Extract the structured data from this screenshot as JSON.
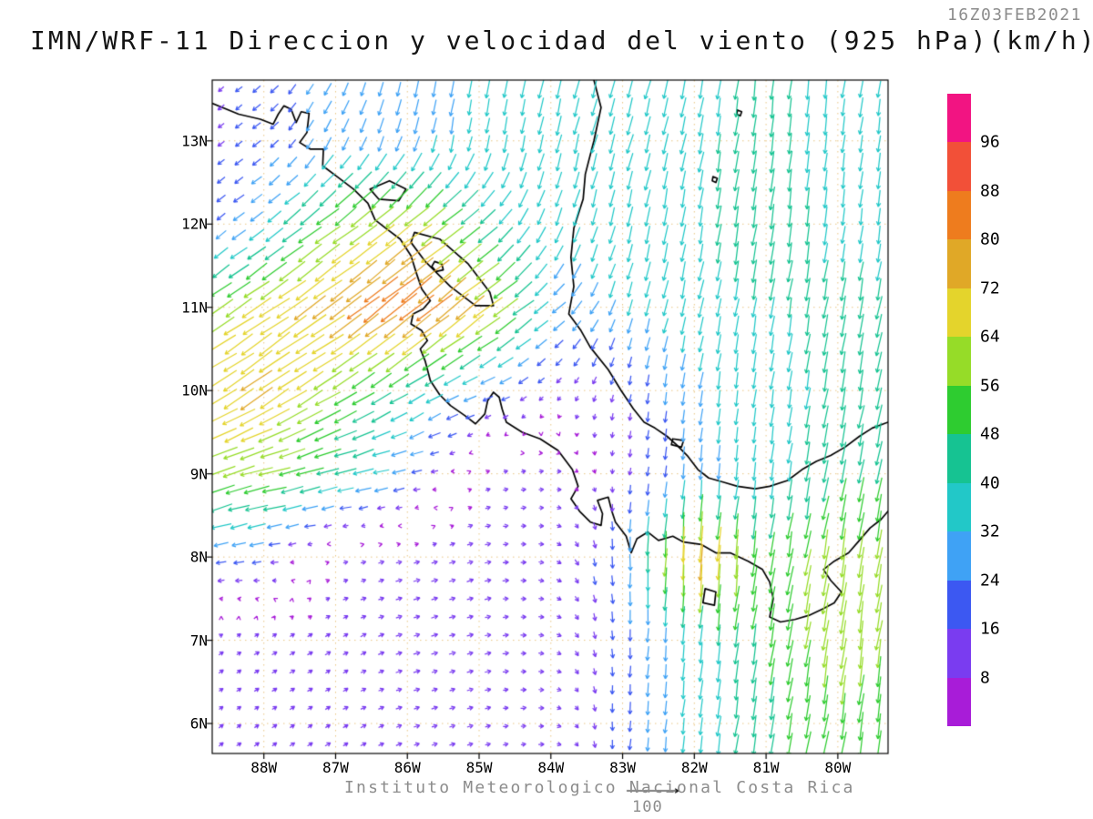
{
  "header": {
    "timestamp": "16Z03FEB2021",
    "title": "IMN/WRF-11 Direccion y velocidad del viento (925 hPa)(km/h)"
  },
  "footer": {
    "credit": "Instituto Meteorologico Nacional Costa Rica",
    "reference_label": "100"
  },
  "axes": {
    "lat_ticks": [
      "13N",
      "12N",
      "11N",
      "10N",
      "9N",
      "8N",
      "7N",
      "6N"
    ],
    "lat_values": [
      13,
      12,
      11,
      10,
      9,
      8,
      7,
      6
    ],
    "lon_ticks": [
      "88W",
      "87W",
      "86W",
      "85W",
      "84W",
      "83W",
      "82W",
      "81W",
      "80W"
    ],
    "lon_values": [
      -88,
      -87,
      -86,
      -85,
      -84,
      -83,
      -82,
      -81,
      -80
    ]
  },
  "colorbar": {
    "labels": [
      "96",
      "88",
      "80",
      "72",
      "64",
      "56",
      "48",
      "40",
      "32",
      "24",
      "16",
      "8"
    ],
    "levels": [
      8,
      16,
      24,
      32,
      40,
      48,
      56,
      64,
      72,
      80,
      88,
      96
    ],
    "colors": [
      "#a81cd8",
      "#7a3cf0",
      "#3c58f2",
      "#3fa2f5",
      "#22c8c8",
      "#16c392",
      "#2ecc30",
      "#96dc28",
      "#e4d42c",
      "#e0a827",
      "#ee7c1e",
      "#f25038",
      "#f21482"
    ]
  },
  "map": {
    "lon_min": -88.72,
    "lon_max": -79.3,
    "lat_min": 5.64,
    "lat_max": 13.73,
    "grid_color": "#e8c583",
    "coast_color": "#000000",
    "coastlines": [
      {
        "name": "pacific-coast",
        "points": [
          [
            -88.72,
            13.45
          ],
          [
            -88.35,
            13.32
          ],
          [
            -88.05,
            13.26
          ],
          [
            -87.87,
            13.2
          ],
          [
            -87.8,
            13.32
          ],
          [
            -87.72,
            13.42
          ],
          [
            -87.62,
            13.38
          ],
          [
            -87.55,
            13.22
          ],
          [
            -87.48,
            13.35
          ],
          [
            -87.37,
            13.33
          ],
          [
            -87.4,
            13.1
          ],
          [
            -87.5,
            12.98
          ],
          [
            -87.35,
            12.9
          ],
          [
            -87.17,
            12.9
          ],
          [
            -87.18,
            12.7
          ],
          [
            -86.95,
            12.55
          ],
          [
            -86.75,
            12.42
          ],
          [
            -86.55,
            12.25
          ],
          [
            -86.45,
            12.05
          ],
          [
            -86.3,
            11.95
          ],
          [
            -86.1,
            11.82
          ],
          [
            -85.95,
            11.62
          ],
          [
            -85.87,
            11.4
          ],
          [
            -85.8,
            11.22
          ],
          [
            -85.68,
            11.08
          ],
          [
            -85.78,
            10.98
          ],
          [
            -85.92,
            10.92
          ],
          [
            -85.95,
            10.8
          ],
          [
            -85.8,
            10.72
          ],
          [
            -85.72,
            10.6
          ],
          [
            -85.82,
            10.5
          ],
          [
            -85.75,
            10.35
          ],
          [
            -85.68,
            10.12
          ],
          [
            -85.55,
            9.95
          ],
          [
            -85.4,
            9.82
          ],
          [
            -85.2,
            9.7
          ],
          [
            -85.05,
            9.6
          ],
          [
            -84.92,
            9.72
          ],
          [
            -84.88,
            9.88
          ],
          [
            -84.8,
            9.98
          ],
          [
            -84.72,
            9.92
          ],
          [
            -84.68,
            9.78
          ],
          [
            -84.62,
            9.62
          ],
          [
            -84.4,
            9.5
          ],
          [
            -84.15,
            9.42
          ],
          [
            -83.9,
            9.28
          ],
          [
            -83.7,
            9.05
          ],
          [
            -83.62,
            8.85
          ],
          [
            -83.72,
            8.7
          ],
          [
            -83.6,
            8.55
          ],
          [
            -83.45,
            8.42
          ],
          [
            -83.3,
            8.38
          ],
          [
            -83.28,
            8.52
          ],
          [
            -83.35,
            8.68
          ],
          [
            -83.2,
            8.72
          ],
          [
            -83.15,
            8.55
          ],
          [
            -83.1,
            8.42
          ],
          [
            -82.95,
            8.25
          ],
          [
            -82.88,
            8.05
          ],
          [
            -82.8,
            8.22
          ],
          [
            -82.65,
            8.3
          ],
          [
            -82.5,
            8.2
          ],
          [
            -82.3,
            8.25
          ],
          [
            -82.15,
            8.18
          ],
          [
            -81.9,
            8.15
          ],
          [
            -81.7,
            8.05
          ],
          [
            -81.5,
            8.05
          ],
          [
            -81.25,
            7.95
          ],
          [
            -81.05,
            7.85
          ],
          [
            -80.95,
            7.7
          ],
          [
            -80.9,
            7.5
          ],
          [
            -80.95,
            7.28
          ],
          [
            -80.8,
            7.22
          ],
          [
            -80.6,
            7.25
          ],
          [
            -80.4,
            7.3
          ],
          [
            -80.2,
            7.38
          ],
          [
            -80.05,
            7.45
          ],
          [
            -79.95,
            7.58
          ],
          [
            -80.1,
            7.72
          ],
          [
            -80.2,
            7.85
          ],
          [
            -80.05,
            7.95
          ],
          [
            -79.85,
            8.05
          ],
          [
            -79.7,
            8.2
          ],
          [
            -79.55,
            8.35
          ],
          [
            -79.4,
            8.45
          ],
          [
            -79.3,
            8.55
          ]
        ]
      },
      {
        "name": "caribbean-coast",
        "points": [
          [
            -83.4,
            13.73
          ],
          [
            -83.3,
            13.4
          ],
          [
            -83.4,
            13.0
          ],
          [
            -83.52,
            12.6
          ],
          [
            -83.55,
            12.3
          ],
          [
            -83.68,
            11.95
          ],
          [
            -83.72,
            11.6
          ],
          [
            -83.68,
            11.25
          ],
          [
            -83.75,
            10.92
          ],
          [
            -83.58,
            10.72
          ],
          [
            -83.45,
            10.52
          ],
          [
            -83.2,
            10.25
          ],
          [
            -83.02,
            10.0
          ],
          [
            -82.85,
            9.78
          ],
          [
            -82.7,
            9.62
          ],
          [
            -82.55,
            9.55
          ],
          [
            -82.38,
            9.45
          ],
          [
            -82.25,
            9.35
          ],
          [
            -82.1,
            9.22
          ],
          [
            -81.95,
            9.05
          ],
          [
            -81.8,
            8.95
          ],
          [
            -81.6,
            8.9
          ],
          [
            -81.4,
            8.85
          ],
          [
            -81.15,
            8.82
          ],
          [
            -80.95,
            8.85
          ],
          [
            -80.7,
            8.92
          ],
          [
            -80.5,
            9.05
          ],
          [
            -80.3,
            9.15
          ],
          [
            -80.1,
            9.22
          ],
          [
            -79.9,
            9.32
          ],
          [
            -79.7,
            9.45
          ],
          [
            -79.52,
            9.55
          ],
          [
            -79.3,
            9.62
          ]
        ]
      },
      {
        "name": "lake-nicaragua",
        "points": [
          [
            -85.9,
            11.9
          ],
          [
            -85.55,
            11.82
          ],
          [
            -85.15,
            11.52
          ],
          [
            -84.85,
            11.18
          ],
          [
            -84.8,
            11.02
          ],
          [
            -85.05,
            11.02
          ],
          [
            -85.4,
            11.25
          ],
          [
            -85.75,
            11.55
          ],
          [
            -85.95,
            11.78
          ],
          [
            -85.9,
            11.9
          ]
        ]
      },
      {
        "name": "ometepe-island",
        "points": [
          [
            -85.62,
            11.55
          ],
          [
            -85.52,
            11.52
          ],
          [
            -85.5,
            11.45
          ],
          [
            -85.6,
            11.43
          ],
          [
            -85.66,
            11.49
          ],
          [
            -85.62,
            11.55
          ]
        ]
      },
      {
        "name": "lake-managua",
        "points": [
          [
            -86.52,
            12.42
          ],
          [
            -86.25,
            12.52
          ],
          [
            -86.02,
            12.42
          ],
          [
            -86.12,
            12.28
          ],
          [
            -86.4,
            12.3
          ],
          [
            -86.52,
            12.42
          ]
        ]
      },
      {
        "name": "coiba-island",
        "points": [
          [
            -81.85,
            7.62
          ],
          [
            -81.7,
            7.58
          ],
          [
            -81.72,
            7.42
          ],
          [
            -81.88,
            7.45
          ],
          [
            -81.85,
            7.62
          ]
        ]
      },
      {
        "name": "bocas-islands",
        "points": [
          [
            -82.3,
            9.42
          ],
          [
            -82.15,
            9.4
          ],
          [
            -82.18,
            9.32
          ],
          [
            -82.32,
            9.35
          ],
          [
            -82.3,
            9.42
          ]
        ]
      },
      {
        "name": "san-andres-island",
        "points": [
          [
            -81.74,
            12.57
          ],
          [
            -81.68,
            12.55
          ],
          [
            -81.7,
            12.5
          ],
          [
            -81.75,
            12.52
          ],
          [
            -81.74,
            12.57
          ]
        ]
      },
      {
        "name": "providencia-island",
        "points": [
          [
            -81.4,
            13.37
          ],
          [
            -81.34,
            13.35
          ],
          [
            -81.36,
            13.3
          ],
          [
            -81.41,
            13.32
          ],
          [
            -81.4,
            13.37
          ]
        ]
      }
    ]
  },
  "chart_data": {
    "type": "vector_field",
    "title": "IMN/WRF-11 Direccion y velocidad del viento (925 hPa)(km/h)",
    "valid_time": "16Z03FEB2021",
    "units": "km/h",
    "pressure_level": "925 hPa",
    "reference_vector": 100,
    "speed_levels": [
      8,
      16,
      24,
      32,
      40,
      48,
      56,
      64,
      72,
      80,
      88,
      96
    ],
    "grid": {
      "lats": [
        5,
        6,
        7,
        8,
        9,
        10,
        11,
        12,
        13,
        14
      ],
      "lons": [
        -89,
        -88,
        -87,
        -86,
        -85,
        -84,
        -83,
        -82,
        -81,
        -80,
        -79
      ],
      "u": [
        [
          8,
          9,
          10,
          11,
          11,
          10,
          -2,
          -4,
          -8,
          -8,
          -8
        ],
        [
          8,
          9,
          10,
          11,
          11,
          10,
          -2,
          -4,
          -8,
          -8,
          -8
        ],
        [
          8,
          10,
          10,
          12,
          12,
          10,
          0,
          -3,
          -8,
          -10,
          -8
        ],
        [
          -25,
          -20,
          8,
          12,
          12,
          10,
          0,
          -5,
          -8,
          -10,
          -10
        ],
        [
          -60,
          -58,
          -45,
          -25,
          8,
          10,
          -2,
          -3,
          -5,
          -10,
          -10
        ],
        [
          -58,
          -62,
          -48,
          -35,
          -25,
          -8,
          -3,
          -5,
          -5,
          -8,
          -8
        ],
        [
          -45,
          -55,
          -62,
          -70,
          -58,
          -25,
          -10,
          -8,
          -6,
          -8,
          -8
        ],
        [
          -12,
          -25,
          -45,
          -55,
          -35,
          -12,
          -8,
          -6,
          -8,
          -5,
          -5
        ],
        [
          -10,
          -15,
          -12,
          -8,
          -5,
          -8,
          -10,
          -8,
          -5,
          -5,
          -5
        ],
        [
          -10,
          -15,
          -12,
          -8,
          -5,
          -8,
          -10,
          -8,
          -5,
          -5,
          -5
        ]
      ],
      "v": [
        [
          6,
          6,
          6,
          4,
          3,
          0,
          -20,
          -35,
          -45,
          -52,
          -48
        ],
        [
          6,
          6,
          6,
          4,
          3,
          0,
          -20,
          -35,
          -45,
          -52,
          -48
        ],
        [
          5,
          6,
          6,
          4,
          3,
          -2,
          -22,
          -35,
          -48,
          -62,
          -55
        ],
        [
          -5,
          -3,
          2,
          3,
          4,
          -3,
          -25,
          -80,
          -50,
          -60,
          -58
        ],
        [
          -22,
          -15,
          -10,
          -5,
          3,
          2,
          -12,
          -30,
          -35,
          -45,
          -48
        ],
        [
          -35,
          -42,
          -30,
          -22,
          -10,
          -8,
          -15,
          -30,
          -35,
          -42,
          -45
        ],
        [
          -30,
          -38,
          -45,
          -56,
          -45,
          -20,
          -30,
          -36,
          -38,
          -44,
          -42
        ],
        [
          -10,
          -20,
          -35,
          -40,
          -28,
          -32,
          -36,
          -38,
          -48,
          -35,
          -33
        ],
        [
          -8,
          -12,
          -25,
          -30,
          -32,
          -35,
          -35,
          -38,
          -42,
          -36,
          -34
        ],
        [
          -8,
          -12,
          -25,
          -30,
          -32,
          -35,
          -35,
          -38,
          -42,
          -36,
          -34
        ]
      ]
    }
  }
}
